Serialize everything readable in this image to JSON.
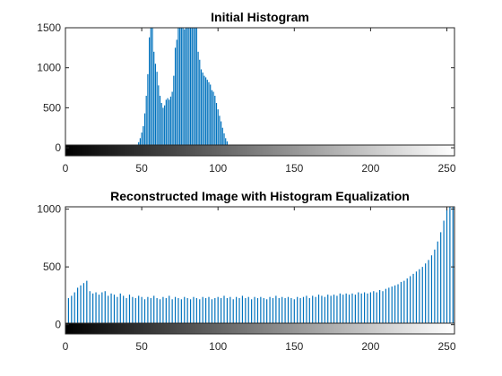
{
  "colors": {
    "bar": "#0072BD",
    "axis": "#262626",
    "background": "#FFFFFF"
  },
  "chart_data": [
    {
      "type": "bar",
      "title": "Initial Histogram",
      "xlabel": "",
      "ylabel": "",
      "xlim": [
        0,
        255
      ],
      "ylim": [
        -100,
        1500
      ],
      "xticks": [
        0,
        50,
        100,
        150,
        200,
        250
      ],
      "yticks": [
        0,
        500,
        1000,
        1500
      ],
      "grid": false,
      "colorbar": "grayscale 0-255 below bars",
      "values": [
        {
          "x": 46,
          "y": 30
        },
        {
          "x": 47,
          "y": 40
        },
        {
          "x": 48,
          "y": 70
        },
        {
          "x": 49,
          "y": 120
        },
        {
          "x": 50,
          "y": 190
        },
        {
          "x": 51,
          "y": 270
        },
        {
          "x": 52,
          "y": 430
        },
        {
          "x": 53,
          "y": 650
        },
        {
          "x": 54,
          "y": 920
        },
        {
          "x": 55,
          "y": 1380
        },
        {
          "x": 56,
          "y": 1500
        },
        {
          "x": 57,
          "y": 1500
        },
        {
          "x": 58,
          "y": 1200
        },
        {
          "x": 59,
          "y": 1050
        },
        {
          "x": 60,
          "y": 950
        },
        {
          "x": 61,
          "y": 780
        },
        {
          "x": 62,
          "y": 650
        },
        {
          "x": 63,
          "y": 560
        },
        {
          "x": 64,
          "y": 500
        },
        {
          "x": 65,
          "y": 530
        },
        {
          "x": 66,
          "y": 600
        },
        {
          "x": 67,
          "y": 620
        },
        {
          "x": 68,
          "y": 600
        },
        {
          "x": 69,
          "y": 640
        },
        {
          "x": 70,
          "y": 700
        },
        {
          "x": 71,
          "y": 900
        },
        {
          "x": 72,
          "y": 1250
        },
        {
          "x": 73,
          "y": 1350
        },
        {
          "x": 74,
          "y": 1500
        },
        {
          "x": 75,
          "y": 1500
        },
        {
          "x": 76,
          "y": 1500
        },
        {
          "x": 77,
          "y": 1500
        },
        {
          "x": 78,
          "y": 1480
        },
        {
          "x": 79,
          "y": 1500
        },
        {
          "x": 80,
          "y": 1500
        },
        {
          "x": 81,
          "y": 1500
        },
        {
          "x": 82,
          "y": 1500
        },
        {
          "x": 83,
          "y": 1500
        },
        {
          "x": 84,
          "y": 1500
        },
        {
          "x": 85,
          "y": 1500
        },
        {
          "x": 86,
          "y": 1500
        },
        {
          "x": 87,
          "y": 1200
        },
        {
          "x": 88,
          "y": 1100
        },
        {
          "x": 89,
          "y": 980
        },
        {
          "x": 90,
          "y": 940
        },
        {
          "x": 91,
          "y": 900
        },
        {
          "x": 92,
          "y": 880
        },
        {
          "x": 93,
          "y": 850
        },
        {
          "x": 94,
          "y": 820
        },
        {
          "x": 95,
          "y": 790
        },
        {
          "x": 96,
          "y": 720
        },
        {
          "x": 97,
          "y": 700
        },
        {
          "x": 98,
          "y": 650
        },
        {
          "x": 99,
          "y": 560
        },
        {
          "x": 100,
          "y": 480
        },
        {
          "x": 101,
          "y": 400
        },
        {
          "x": 102,
          "y": 330
        },
        {
          "x": 103,
          "y": 250
        },
        {
          "x": 104,
          "y": 180
        },
        {
          "x": 105,
          "y": 120
        },
        {
          "x": 106,
          "y": 80
        },
        {
          "x": 107,
          "y": 40
        },
        {
          "x": 108,
          "y": 20
        }
      ]
    },
    {
      "type": "bar",
      "title": "Reconstructed Image with Histogram Equalization",
      "xlabel": "",
      "ylabel": "",
      "xlim": [
        0,
        255
      ],
      "ylim": [
        -80,
        1020
      ],
      "xticks": [
        0,
        50,
        100,
        150,
        200,
        250
      ],
      "yticks": [
        0,
        500,
        1000
      ],
      "grid": false,
      "colorbar": "grayscale 0-255 below bars",
      "values": [
        {
          "x": 2,
          "y": 230
        },
        {
          "x": 4,
          "y": 250
        },
        {
          "x": 6,
          "y": 280
        },
        {
          "x": 8,
          "y": 320
        },
        {
          "x": 10,
          "y": 340
        },
        {
          "x": 12,
          "y": 360
        },
        {
          "x": 14,
          "y": 380
        },
        {
          "x": 16,
          "y": 290
        },
        {
          "x": 18,
          "y": 270
        },
        {
          "x": 20,
          "y": 280
        },
        {
          "x": 22,
          "y": 260
        },
        {
          "x": 24,
          "y": 280
        },
        {
          "x": 26,
          "y": 290
        },
        {
          "x": 28,
          "y": 250
        },
        {
          "x": 30,
          "y": 270
        },
        {
          "x": 32,
          "y": 260
        },
        {
          "x": 34,
          "y": 240
        },
        {
          "x": 36,
          "y": 270
        },
        {
          "x": 38,
          "y": 250
        },
        {
          "x": 40,
          "y": 230
        },
        {
          "x": 42,
          "y": 260
        },
        {
          "x": 44,
          "y": 240
        },
        {
          "x": 46,
          "y": 230
        },
        {
          "x": 48,
          "y": 250
        },
        {
          "x": 50,
          "y": 240
        },
        {
          "x": 52,
          "y": 220
        },
        {
          "x": 54,
          "y": 240
        },
        {
          "x": 56,
          "y": 230
        },
        {
          "x": 58,
          "y": 250
        },
        {
          "x": 60,
          "y": 230
        },
        {
          "x": 62,
          "y": 220
        },
        {
          "x": 64,
          "y": 240
        },
        {
          "x": 66,
          "y": 230
        },
        {
          "x": 68,
          "y": 250
        },
        {
          "x": 70,
          "y": 220
        },
        {
          "x": 72,
          "y": 240
        },
        {
          "x": 74,
          "y": 230
        },
        {
          "x": 76,
          "y": 220
        },
        {
          "x": 78,
          "y": 240
        },
        {
          "x": 80,
          "y": 230
        },
        {
          "x": 82,
          "y": 220
        },
        {
          "x": 84,
          "y": 240
        },
        {
          "x": 86,
          "y": 230
        },
        {
          "x": 88,
          "y": 220
        },
        {
          "x": 90,
          "y": 240
        },
        {
          "x": 92,
          "y": 230
        },
        {
          "x": 94,
          "y": 240
        },
        {
          "x": 96,
          "y": 220
        },
        {
          "x": 98,
          "y": 230
        },
        {
          "x": 100,
          "y": 240
        },
        {
          "x": 102,
          "y": 230
        },
        {
          "x": 104,
          "y": 250
        },
        {
          "x": 106,
          "y": 230
        },
        {
          "x": 108,
          "y": 240
        },
        {
          "x": 110,
          "y": 220
        },
        {
          "x": 112,
          "y": 240
        },
        {
          "x": 114,
          "y": 230
        },
        {
          "x": 116,
          "y": 250
        },
        {
          "x": 118,
          "y": 230
        },
        {
          "x": 120,
          "y": 240
        },
        {
          "x": 122,
          "y": 220
        },
        {
          "x": 124,
          "y": 240
        },
        {
          "x": 126,
          "y": 230
        },
        {
          "x": 128,
          "y": 240
        },
        {
          "x": 130,
          "y": 230
        },
        {
          "x": 132,
          "y": 220
        },
        {
          "x": 134,
          "y": 240
        },
        {
          "x": 136,
          "y": 230
        },
        {
          "x": 138,
          "y": 250
        },
        {
          "x": 140,
          "y": 230
        },
        {
          "x": 142,
          "y": 240
        },
        {
          "x": 144,
          "y": 230
        },
        {
          "x": 146,
          "y": 240
        },
        {
          "x": 148,
          "y": 230
        },
        {
          "x": 150,
          "y": 220
        },
        {
          "x": 152,
          "y": 240
        },
        {
          "x": 154,
          "y": 230
        },
        {
          "x": 156,
          "y": 240
        },
        {
          "x": 158,
          "y": 250
        },
        {
          "x": 160,
          "y": 230
        },
        {
          "x": 162,
          "y": 250
        },
        {
          "x": 164,
          "y": 240
        },
        {
          "x": 166,
          "y": 260
        },
        {
          "x": 168,
          "y": 250
        },
        {
          "x": 170,
          "y": 240
        },
        {
          "x": 172,
          "y": 260
        },
        {
          "x": 174,
          "y": 250
        },
        {
          "x": 176,
          "y": 260
        },
        {
          "x": 178,
          "y": 250
        },
        {
          "x": 180,
          "y": 270
        },
        {
          "x": 182,
          "y": 260
        },
        {
          "x": 184,
          "y": 270
        },
        {
          "x": 186,
          "y": 260
        },
        {
          "x": 188,
          "y": 270
        },
        {
          "x": 190,
          "y": 260
        },
        {
          "x": 192,
          "y": 280
        },
        {
          "x": 194,
          "y": 270
        },
        {
          "x": 196,
          "y": 280
        },
        {
          "x": 198,
          "y": 270
        },
        {
          "x": 200,
          "y": 280
        },
        {
          "x": 202,
          "y": 290
        },
        {
          "x": 204,
          "y": 280
        },
        {
          "x": 206,
          "y": 300
        },
        {
          "x": 208,
          "y": 290
        },
        {
          "x": 210,
          "y": 310
        },
        {
          "x": 212,
          "y": 320
        },
        {
          "x": 214,
          "y": 330
        },
        {
          "x": 216,
          "y": 340
        },
        {
          "x": 218,
          "y": 350
        },
        {
          "x": 220,
          "y": 370
        },
        {
          "x": 222,
          "y": 380
        },
        {
          "x": 224,
          "y": 400
        },
        {
          "x": 226,
          "y": 420
        },
        {
          "x": 228,
          "y": 440
        },
        {
          "x": 230,
          "y": 460
        },
        {
          "x": 232,
          "y": 480
        },
        {
          "x": 234,
          "y": 500
        },
        {
          "x": 236,
          "y": 530
        },
        {
          "x": 238,
          "y": 560
        },
        {
          "x": 240,
          "y": 600
        },
        {
          "x": 242,
          "y": 650
        },
        {
          "x": 244,
          "y": 720
        },
        {
          "x": 246,
          "y": 800
        },
        {
          "x": 248,
          "y": 900
        },
        {
          "x": 250,
          "y": 1000
        },
        {
          "x": 252,
          "y": 1020
        },
        {
          "x": 254,
          "y": 1020
        }
      ]
    }
  ]
}
